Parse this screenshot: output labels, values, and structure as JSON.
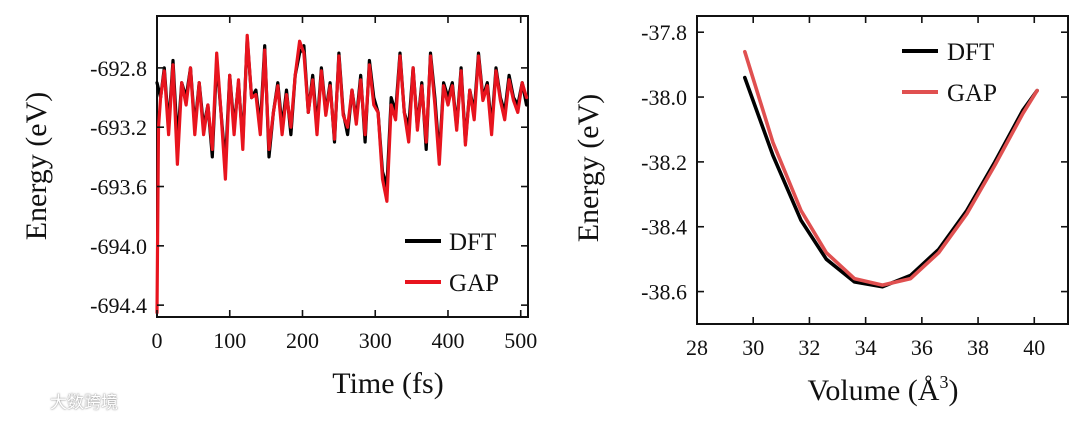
{
  "chart_data": [
    {
      "type": "line",
      "xlabel": "Time (fs)",
      "ylabel": "Energy (eV)",
      "xlim": [
        0,
        510
      ],
      "ylim": [
        -694.48,
        -692.45
      ],
      "xticks": [
        "0",
        "100",
        "200",
        "300",
        "400",
        "500"
      ],
      "yticks": [
        "-692.8",
        "-693.2",
        "-693.6",
        "-694.0",
        "-694.4"
      ],
      "legend": {
        "location": "bottom-right",
        "entries": [
          "DFT",
          "GAP"
        ]
      },
      "series": [
        {
          "name": "DFT",
          "color": "#000000",
          "x": [
            0,
            5,
            10,
            16,
            22,
            28,
            34,
            40,
            46,
            52,
            58,
            64,
            70,
            76,
            82,
            88,
            94,
            100,
            106,
            112,
            118,
            124,
            130,
            136,
            142,
            148,
            154,
            160,
            166,
            172,
            178,
            184,
            190,
            196,
            202,
            208,
            214,
            220,
            226,
            232,
            238,
            244,
            250,
            256,
            262,
            268,
            274,
            280,
            286,
            292,
            298,
            304,
            310,
            316,
            322,
            328,
            334,
            340,
            346,
            352,
            358,
            364,
            370,
            376,
            382,
            388,
            394,
            400,
            406,
            412,
            418,
            424,
            430,
            436,
            442,
            448,
            454,
            460,
            466,
            472,
            478,
            484,
            490,
            496,
            502,
            508
          ],
          "y": [
            -692.9,
            -693.0,
            -692.8,
            -693.2,
            -692.75,
            -693.3,
            -692.9,
            -693.0,
            -692.8,
            -693.2,
            -692.9,
            -693.2,
            -693.05,
            -693.4,
            -692.75,
            -693.1,
            -693.45,
            -692.85,
            -693.2,
            -692.9,
            -693.3,
            -692.6,
            -693.0,
            -692.95,
            -693.2,
            -692.65,
            -693.4,
            -693.1,
            -692.9,
            -693.2,
            -692.95,
            -693.25,
            -692.85,
            -692.7,
            -692.65,
            -693.1,
            -692.85,
            -693.2,
            -692.8,
            -693.1,
            -692.9,
            -693.3,
            -692.7,
            -693.1,
            -693.25,
            -692.95,
            -693.15,
            -692.85,
            -693.3,
            -692.75,
            -693.0,
            -693.1,
            -693.5,
            -693.6,
            -693.0,
            -693.1,
            -692.7,
            -693.1,
            -693.2,
            -692.8,
            -693.2,
            -692.9,
            -693.35,
            -692.7,
            -693.0,
            -693.4,
            -692.9,
            -693.0,
            -692.9,
            -693.2,
            -692.8,
            -693.3,
            -692.95,
            -693.1,
            -692.7,
            -693.0,
            -692.9,
            -693.2,
            -692.8,
            -693.0,
            -693.1,
            -692.85,
            -693.0,
            -693.05,
            -692.9,
            -693.05
          ]
        },
        {
          "name": "GAP",
          "color": "#e8141e",
          "x": [
            0,
            2,
            5,
            10,
            16,
            22,
            28,
            34,
            40,
            46,
            52,
            58,
            64,
            70,
            76,
            82,
            88,
            94,
            100,
            106,
            112,
            118,
            124,
            130,
            136,
            142,
            148,
            154,
            160,
            166,
            172,
            178,
            184,
            190,
            196,
            202,
            208,
            214,
            220,
            226,
            232,
            238,
            244,
            250,
            256,
            262,
            268,
            274,
            280,
            286,
            292,
            298,
            304,
            310,
            316,
            322,
            328,
            334,
            340,
            346,
            352,
            358,
            364,
            370,
            376,
            382,
            388,
            394,
            400,
            406,
            412,
            418,
            424,
            430,
            436,
            442,
            448,
            454,
            460,
            466,
            472,
            478,
            484,
            490,
            496,
            502,
            508
          ],
          "y": [
            -694.45,
            -693.2,
            -693.0,
            -692.82,
            -693.25,
            -692.78,
            -693.45,
            -692.9,
            -693.05,
            -692.8,
            -693.25,
            -692.9,
            -693.25,
            -693.05,
            -693.35,
            -692.7,
            -693.1,
            -693.55,
            -692.85,
            -693.25,
            -692.88,
            -693.35,
            -692.58,
            -693.0,
            -692.98,
            -693.25,
            -692.68,
            -693.35,
            -693.1,
            -692.92,
            -693.25,
            -692.98,
            -693.2,
            -692.85,
            -692.62,
            -692.7,
            -693.1,
            -692.88,
            -693.25,
            -692.82,
            -693.12,
            -692.92,
            -693.28,
            -692.72,
            -693.12,
            -693.2,
            -692.95,
            -693.18,
            -692.88,
            -693.25,
            -692.78,
            -693.05,
            -693.1,
            -693.55,
            -693.7,
            -693.05,
            -693.15,
            -692.72,
            -693.1,
            -693.3,
            -692.8,
            -693.22,
            -692.92,
            -693.3,
            -692.72,
            -693.05,
            -693.45,
            -692.92,
            -693.05,
            -692.92,
            -693.22,
            -692.82,
            -693.32,
            -692.95,
            -693.15,
            -692.72,
            -693.02,
            -692.92,
            -693.25,
            -692.82,
            -693.02,
            -693.15,
            -692.88,
            -693.02,
            -693.1,
            -692.9,
            -693.0
          ]
        }
      ]
    },
    {
      "type": "line",
      "xlabel": "Volume (Å",
      "xlabel_sup": "3",
      "xlabel_close": ")",
      "ylabel": "Energy (eV)",
      "xlim": [
        28,
        41.2
      ],
      "ylim": [
        -38.7,
        -37.75
      ],
      "xticks": [
        "28",
        "30",
        "32",
        "34",
        "36",
        "38",
        "40"
      ],
      "yticks": [
        "-37.8",
        "-38.0",
        "-38.2",
        "-38.4",
        "-38.6"
      ],
      "legend": {
        "location": "top-right",
        "entries": [
          "DFT",
          "GAP"
        ]
      },
      "series": [
        {
          "name": "DFT",
          "color": "#000000",
          "x": [
            29.7,
            30.7,
            31.7,
            32.6,
            33.6,
            34.6,
            35.6,
            36.6,
            37.6,
            38.6,
            39.6,
            40.1
          ],
          "y": [
            -37.94,
            -38.18,
            -38.38,
            -38.5,
            -38.57,
            -38.585,
            -38.55,
            -38.47,
            -38.35,
            -38.2,
            -38.04,
            -37.98
          ]
        },
        {
          "name": "GAP",
          "color": "#e05050",
          "x": [
            29.7,
            30.7,
            31.7,
            32.6,
            33.6,
            34.6,
            35.6,
            36.6,
            37.6,
            38.6,
            39.6,
            40.1
          ],
          "y": [
            -37.86,
            -38.14,
            -38.35,
            -38.48,
            -38.56,
            -38.58,
            -38.56,
            -38.48,
            -38.36,
            -38.21,
            -38.05,
            -37.98
          ]
        }
      ]
    }
  ],
  "watermark": {
    "text": "大数跨境",
    "logo": "brand-logo"
  }
}
